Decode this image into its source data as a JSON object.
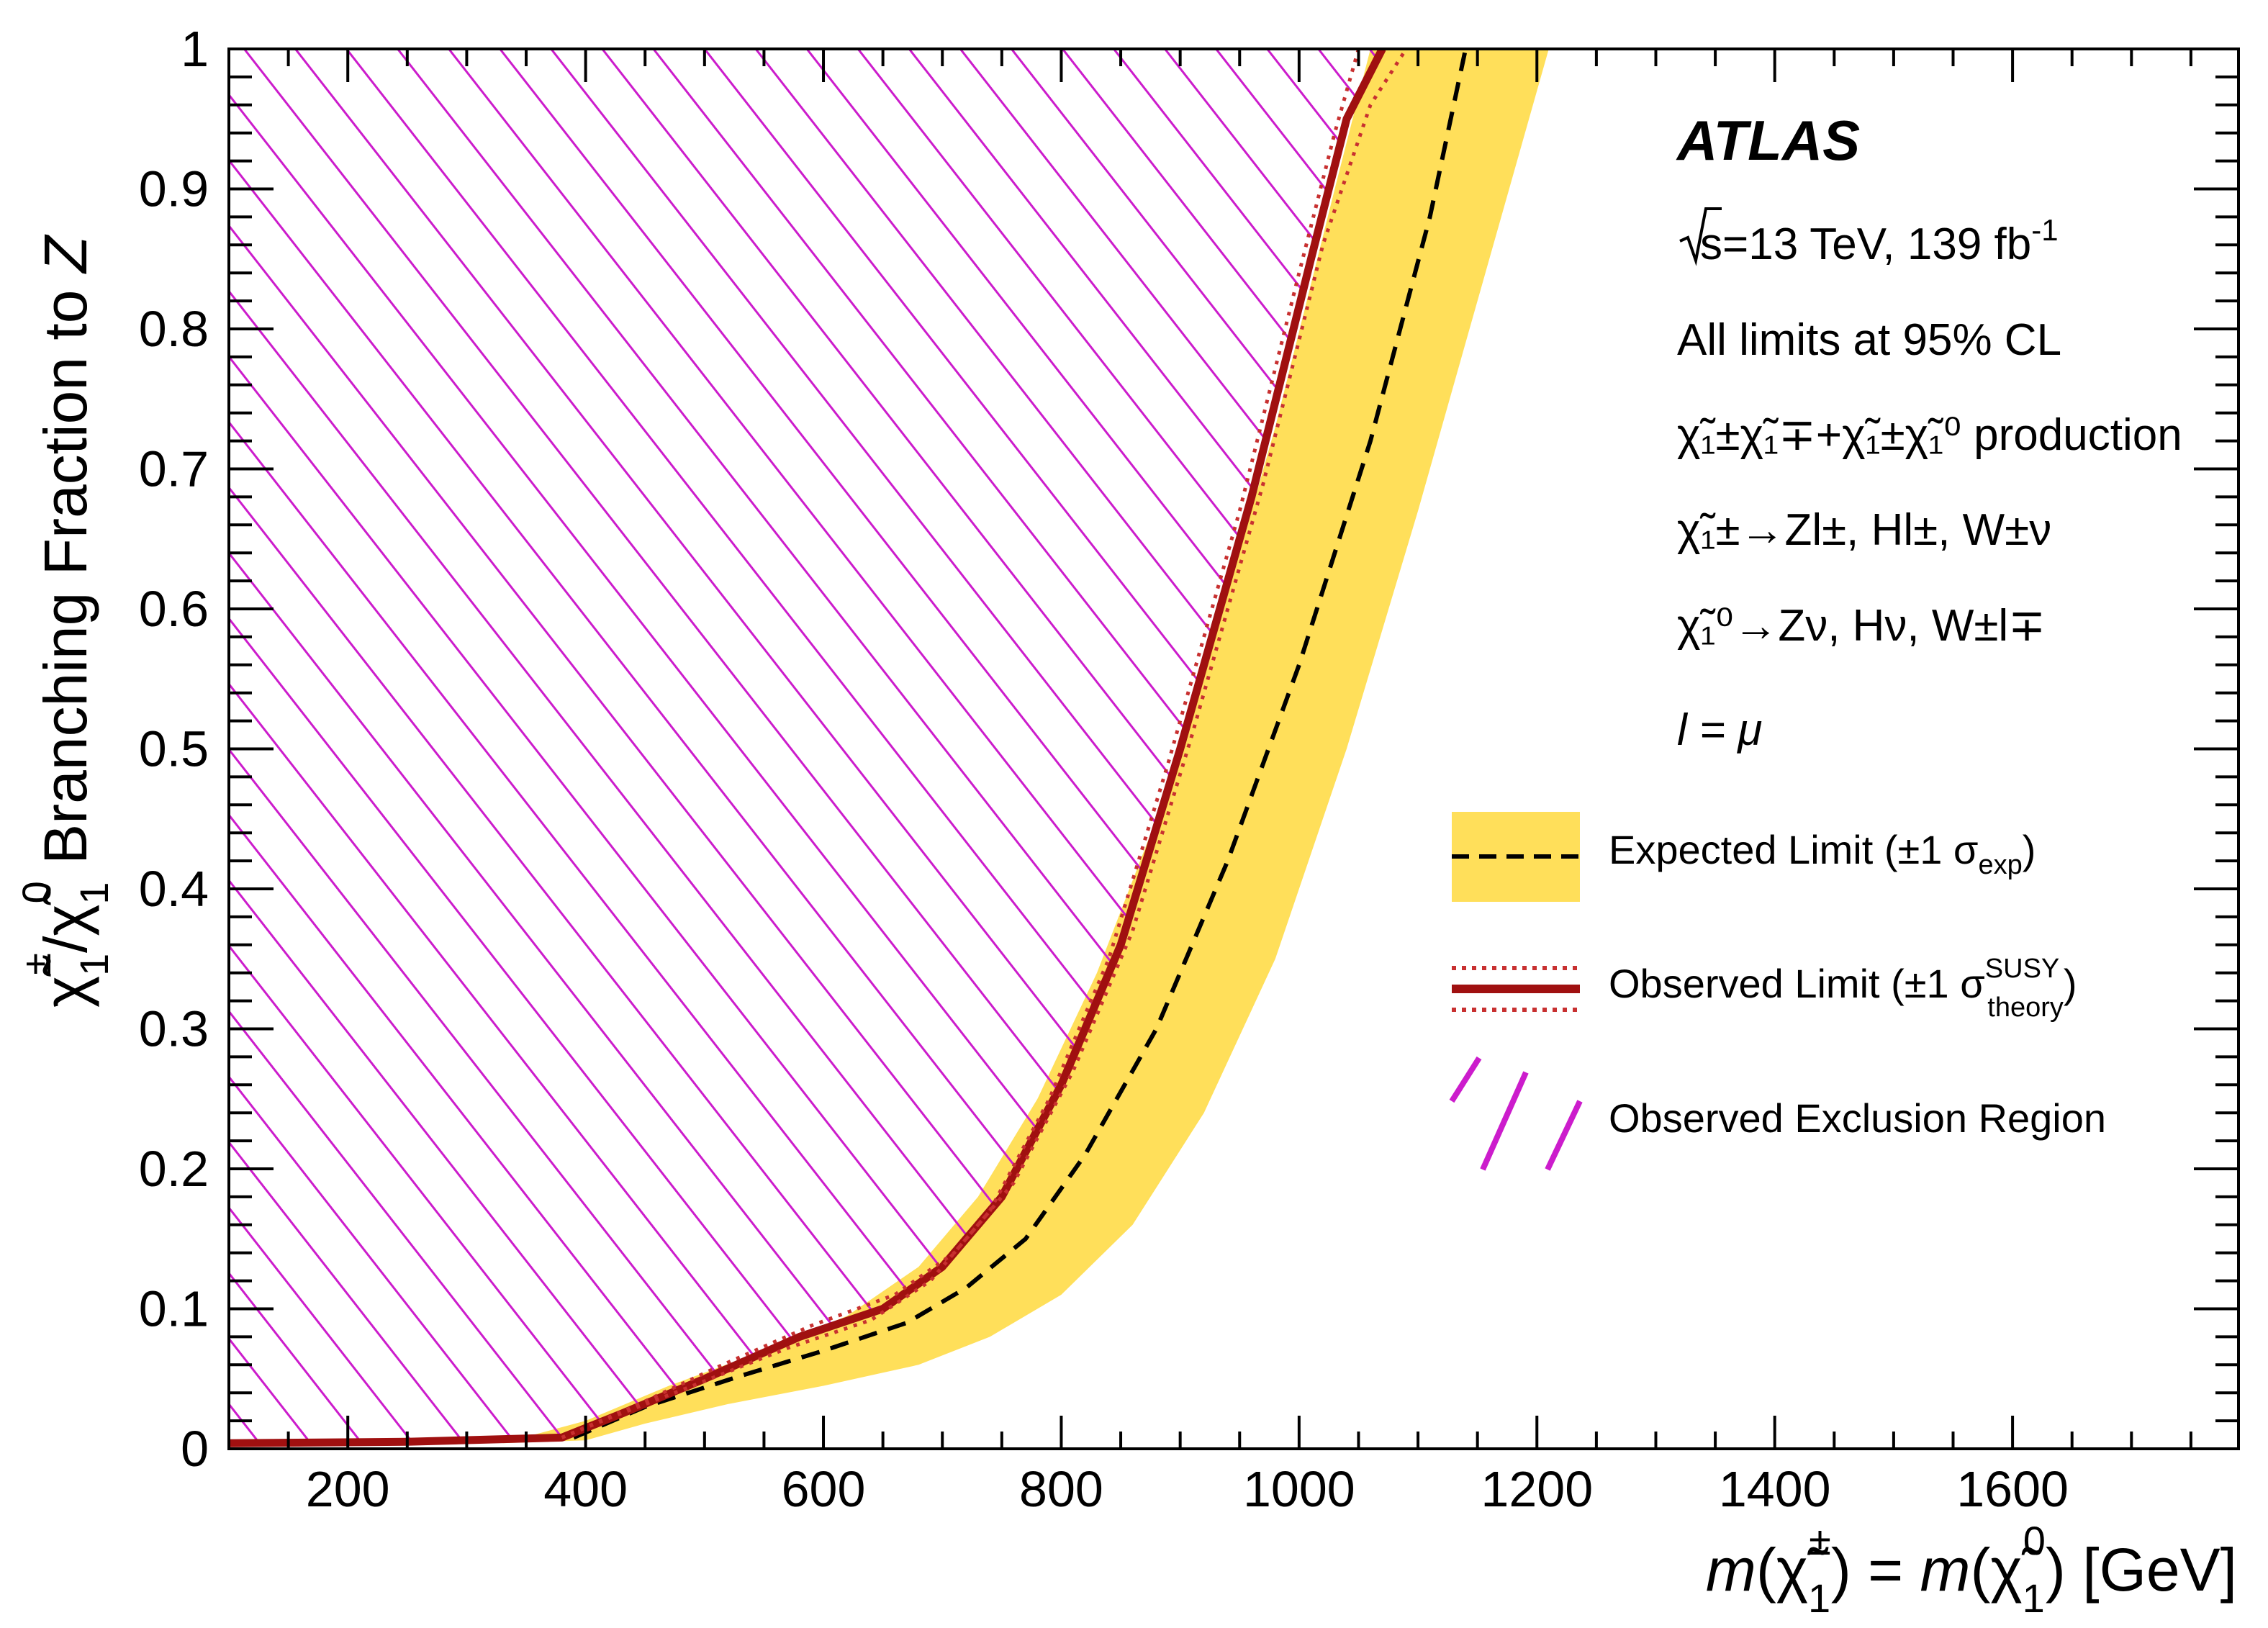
{
  "chart_data": {
    "type": "line",
    "xlabel": "m(χ̃₁±) = m(χ̃₁⁰) [GeV]",
    "ylabel": "χ̃₁±/χ̃₁⁰ Branching Fraction to Z",
    "xlim": [
      100,
      1790
    ],
    "ylim": [
      0,
      1
    ],
    "x_ticks": [
      "200",
      "400",
      "600",
      "800",
      "1000",
      "1200",
      "1400",
      "1600"
    ],
    "x_tick_values": [
      200,
      400,
      600,
      800,
      1000,
      1200,
      1400,
      1600
    ],
    "y_ticks": [
      "0",
      "0.1",
      "0.2",
      "0.3",
      "0.4",
      "0.5",
      "0.6",
      "0.7",
      "0.8",
      "0.9",
      "1"
    ],
    "y_tick_values": [
      0,
      0.1,
      0.2,
      0.3,
      0.4,
      0.5,
      0.6,
      0.7,
      0.8,
      0.9,
      1
    ],
    "series": [
      {
        "name": "Expected Limit (±1 σexp)",
        "style": "dashed",
        "color": "#000000",
        "x": [
          390,
          450,
          530,
          600,
          670,
          720,
          770,
          820,
          880,
          940,
          1000,
          1060,
          1110,
          1140
        ],
        "y": [
          0.008,
          0.03,
          0.052,
          0.07,
          0.09,
          0.115,
          0.15,
          0.21,
          0.3,
          0.42,
          0.56,
          0.72,
          0.88,
          1.0
        ]
      },
      {
        "name": "Expected band upper",
        "style": "band-edge",
        "color": "#ffdf5a",
        "x": [
          330,
          400,
          470,
          550,
          620,
          680,
          730,
          780,
          830,
          880,
          930,
          980,
          1030,
          1060
        ],
        "y": [
          0.004,
          0.02,
          0.045,
          0.07,
          0.095,
          0.13,
          0.18,
          0.25,
          0.34,
          0.45,
          0.58,
          0.73,
          0.9,
          1.0
        ]
      },
      {
        "name": "Expected band lower",
        "style": "band-edge",
        "color": "#ffdf5a",
        "x": [
          400,
          450,
          520,
          600,
          680,
          740,
          800,
          860,
          920,
          980,
          1040,
          1100,
          1160,
          1210
        ],
        "y": [
          0.006,
          0.018,
          0.032,
          0.045,
          0.06,
          0.08,
          0.11,
          0.16,
          0.24,
          0.35,
          0.5,
          0.67,
          0.85,
          1.0
        ]
      },
      {
        "name": "Observed Limit (±1 σtheorySUSY)",
        "style": "solid",
        "color": "#a01010",
        "x": [
          100,
          250,
          380,
          430,
          500,
          580,
          650,
          700,
          750,
          800,
          850,
          900,
          960,
          1010,
          1040,
          1070
        ],
        "y": [
          0.004,
          0.005,
          0.008,
          0.025,
          0.05,
          0.08,
          0.1,
          0.13,
          0.18,
          0.26,
          0.36,
          0.5,
          0.68,
          0.85,
          0.95,
          1.0
        ]
      },
      {
        "name": "Observed +1σ theory",
        "style": "dotted",
        "color": "#c83030",
        "x": [
          380,
          440,
          510,
          590,
          660,
          710,
          760,
          810,
          860,
          910,
          970,
          1020,
          1060,
          1090
        ],
        "y": [
          0.008,
          0.03,
          0.058,
          0.088,
          0.11,
          0.14,
          0.19,
          0.27,
          0.37,
          0.51,
          0.69,
          0.86,
          0.96,
          1.0
        ]
      },
      {
        "name": "Observed -1σ theory",
        "style": "dotted",
        "color": "#c83030",
        "x": [
          380,
          420,
          490,
          570,
          640,
          690,
          740,
          790,
          840,
          890,
          950,
          1000,
          1030,
          1050
        ],
        "y": [
          0.008,
          0.022,
          0.045,
          0.072,
          0.092,
          0.12,
          0.17,
          0.25,
          0.35,
          0.49,
          0.67,
          0.84,
          0.94,
          1.0
        ]
      }
    ],
    "exclusion_region": "hatched area left of the observed limit",
    "colors": {
      "expected_band": "#ffdf5a",
      "observed": "#a01010",
      "observed_theory": "#c83030",
      "hatch": "#cc1ccc"
    },
    "legend": [
      {
        "label": "Expected Limit (±1 σ",
        "sub": "exp",
        "sup": "",
        "close": ")",
        "icon": "band-dashed"
      },
      {
        "label": "Observed Limit (±1 σ",
        "sub": "theory",
        "sup": "SUSY",
        "close": ")",
        "icon": "solid-dotted"
      },
      {
        "label": "Observed Exclusion Region",
        "sub": "",
        "sup": "",
        "close": "",
        "icon": "hatch"
      }
    ],
    "legend_position": "right",
    "annotations": {
      "experiment": "ATLAS",
      "energy_prefix": "s=13 TeV, 139 fb",
      "energy_exp": "-1",
      "cl": "All limits at 95% CL",
      "production": "χ̃₁±χ̃₁∓+χ̃₁±χ̃₁⁰ production",
      "decay1": "χ̃₁±→Zl±, Hl±, W±ν",
      "decay2": "χ̃₁⁰→Zν, Hν, W±l∓",
      "lepton": "l = μ"
    },
    "grid": false
  }
}
